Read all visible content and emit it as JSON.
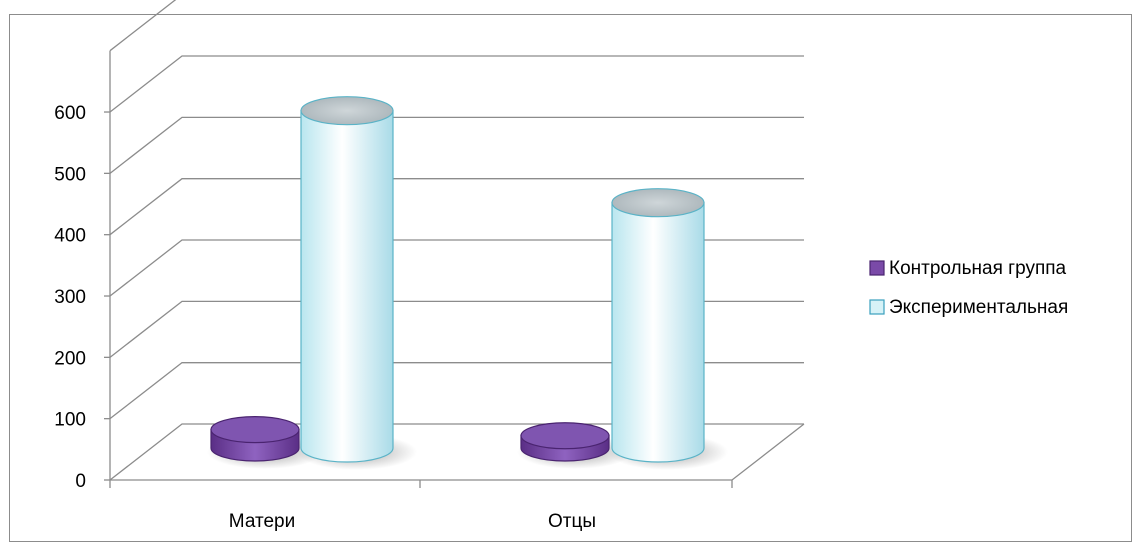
{
  "chart_data": {
    "type": "bar",
    "style": "3d-cylinder",
    "categories": [
      "Матери",
      "Отцы"
    ],
    "series": [
      {
        "name": "Контрольная группа",
        "values": [
          30,
          20
        ],
        "color": "#7a4aa8"
      },
      {
        "name": "Экспериментальная",
        "values": [
          550,
          400
        ],
        "color": "#d6f2f7"
      }
    ],
    "yticks": [
      "0",
      "100",
      "200",
      "300",
      "400",
      "500",
      "600"
    ],
    "ylim": [
      0,
      700
    ],
    "grid": true,
    "legend_position": "right"
  }
}
